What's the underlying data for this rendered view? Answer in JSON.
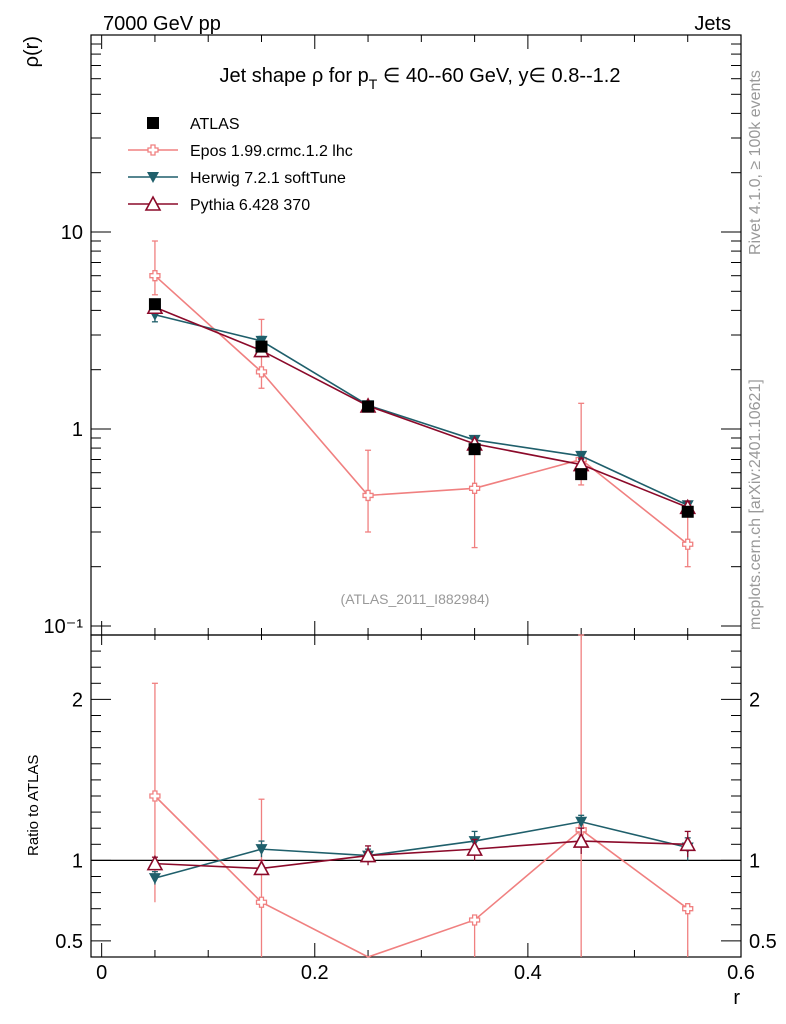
{
  "header": {
    "left": "7000 GeV pp",
    "right": "Jets"
  },
  "side_labels": {
    "rivet": "Rivet 4.1.0, ≥ 100k events",
    "mcplots": "mcplots.cern.ch [arXiv:2401.10621]"
  },
  "colors": {
    "atlas": "#000000",
    "epos": "#f08080",
    "herwig": "#1f5f6b",
    "pythia": "#8b0a2a",
    "ref_text": "#999999"
  },
  "chart_data": {
    "type": "line",
    "title": "Jet shape ρ for p_T ∈ 40--60 GeV, y∈ 0.8--1.2",
    "title_parts": {
      "pre": "Jet shape ρ for p",
      "sub": "T",
      "post": " ∈ 40--60 GeV, y∈ 0.8--1.2"
    },
    "ref_label": "(ATLAS_2011_I882984)",
    "xlabel": "r",
    "ylabel": "ρ(r)",
    "ratio_ylabel": "Ratio to ATLAS",
    "xlim": [
      -0.01,
      0.6
    ],
    "ylim": [
      0.09,
      100
    ],
    "ylog": true,
    "ratio_ylim": [
      0.4,
      2.4
    ],
    "x_ticks": [
      "0",
      "0.2",
      "0.4",
      "0.6"
    ],
    "y_ticks": [
      "10⁻¹",
      "1",
      "10"
    ],
    "ratio_ticks": [
      "0.5",
      "1",
      "2"
    ],
    "x": [
      0.05,
      0.15,
      0.25,
      0.35,
      0.45,
      0.55
    ],
    "series": [
      {
        "name": "ATLAS",
        "key": "atlas",
        "marker": "square",
        "values": [
          4.3,
          2.62,
          1.3,
          0.79,
          0.59,
          0.38
        ],
        "err": [
          0.0,
          0.0,
          0.0,
          0.0,
          0.0,
          0.0
        ],
        "ratio": [
          1.0,
          1.0,
          1.0,
          1.0,
          1.0,
          1.0
        ],
        "ratio_err": [
          0,
          0,
          0,
          0,
          0,
          0
        ]
      },
      {
        "name": "Epos 1.99.crmc.1.2 lhc",
        "key": "epos",
        "marker": "cross",
        "values": [
          6.0,
          1.95,
          0.46,
          0.5,
          0.7,
          0.26
        ],
        "err_lo": [
          4.8,
          1.61,
          0.3,
          0.25,
          0.52,
          0.2
        ],
        "err_hi": [
          9.0,
          3.6,
          0.78,
          0.75,
          1.35,
          0.36
        ],
        "ratio": [
          1.4,
          0.74,
          0.35,
          0.63,
          1.19,
          0.7
        ],
        "ratio_lo": [
          0.74,
          0.0,
          0.0,
          0.0,
          0.0,
          0.0
        ],
        "ratio_hi": [
          2.1,
          1.38,
          0.35,
          0.63,
          2.4,
          0.7
        ]
      },
      {
        "name": "Herwig 7.2.1 softTune",
        "key": "herwig",
        "marker": "tri-down",
        "values": [
          3.8,
          2.8,
          1.32,
          0.88,
          0.73,
          0.41
        ],
        "err_lo": [
          3.5,
          2.65,
          1.27,
          0.85,
          0.7,
          0.39
        ],
        "err_hi": [
          4.1,
          2.95,
          1.37,
          0.91,
          0.76,
          0.43
        ],
        "ratio": [
          0.89,
          1.07,
          1.03,
          1.12,
          1.24,
          1.08
        ],
        "ratio_lo": [
          0.85,
          1.02,
          0.99,
          1.06,
          1.16,
          1.0
        ],
        "ratio_hi": [
          0.93,
          1.12,
          1.07,
          1.18,
          1.28,
          1.14
        ]
      },
      {
        "name": "Pythia 6.428 370",
        "key": "pythia",
        "marker": "tri-up",
        "values": [
          4.15,
          2.5,
          1.31,
          0.84,
          0.66,
          0.4
        ],
        "err_lo": [
          3.95,
          2.35,
          1.25,
          0.8,
          0.61,
          0.37
        ],
        "err_hi": [
          4.35,
          2.65,
          1.37,
          0.88,
          0.71,
          0.43
        ],
        "ratio": [
          0.98,
          0.95,
          1.03,
          1.07,
          1.12,
          1.1
        ],
        "ratio_lo": [
          0.94,
          0.91,
          0.97,
          1.0,
          1.04,
          1.02
        ],
        "ratio_hi": [
          1.02,
          1.0,
          1.09,
          1.13,
          1.2,
          1.18
        ]
      }
    ]
  }
}
